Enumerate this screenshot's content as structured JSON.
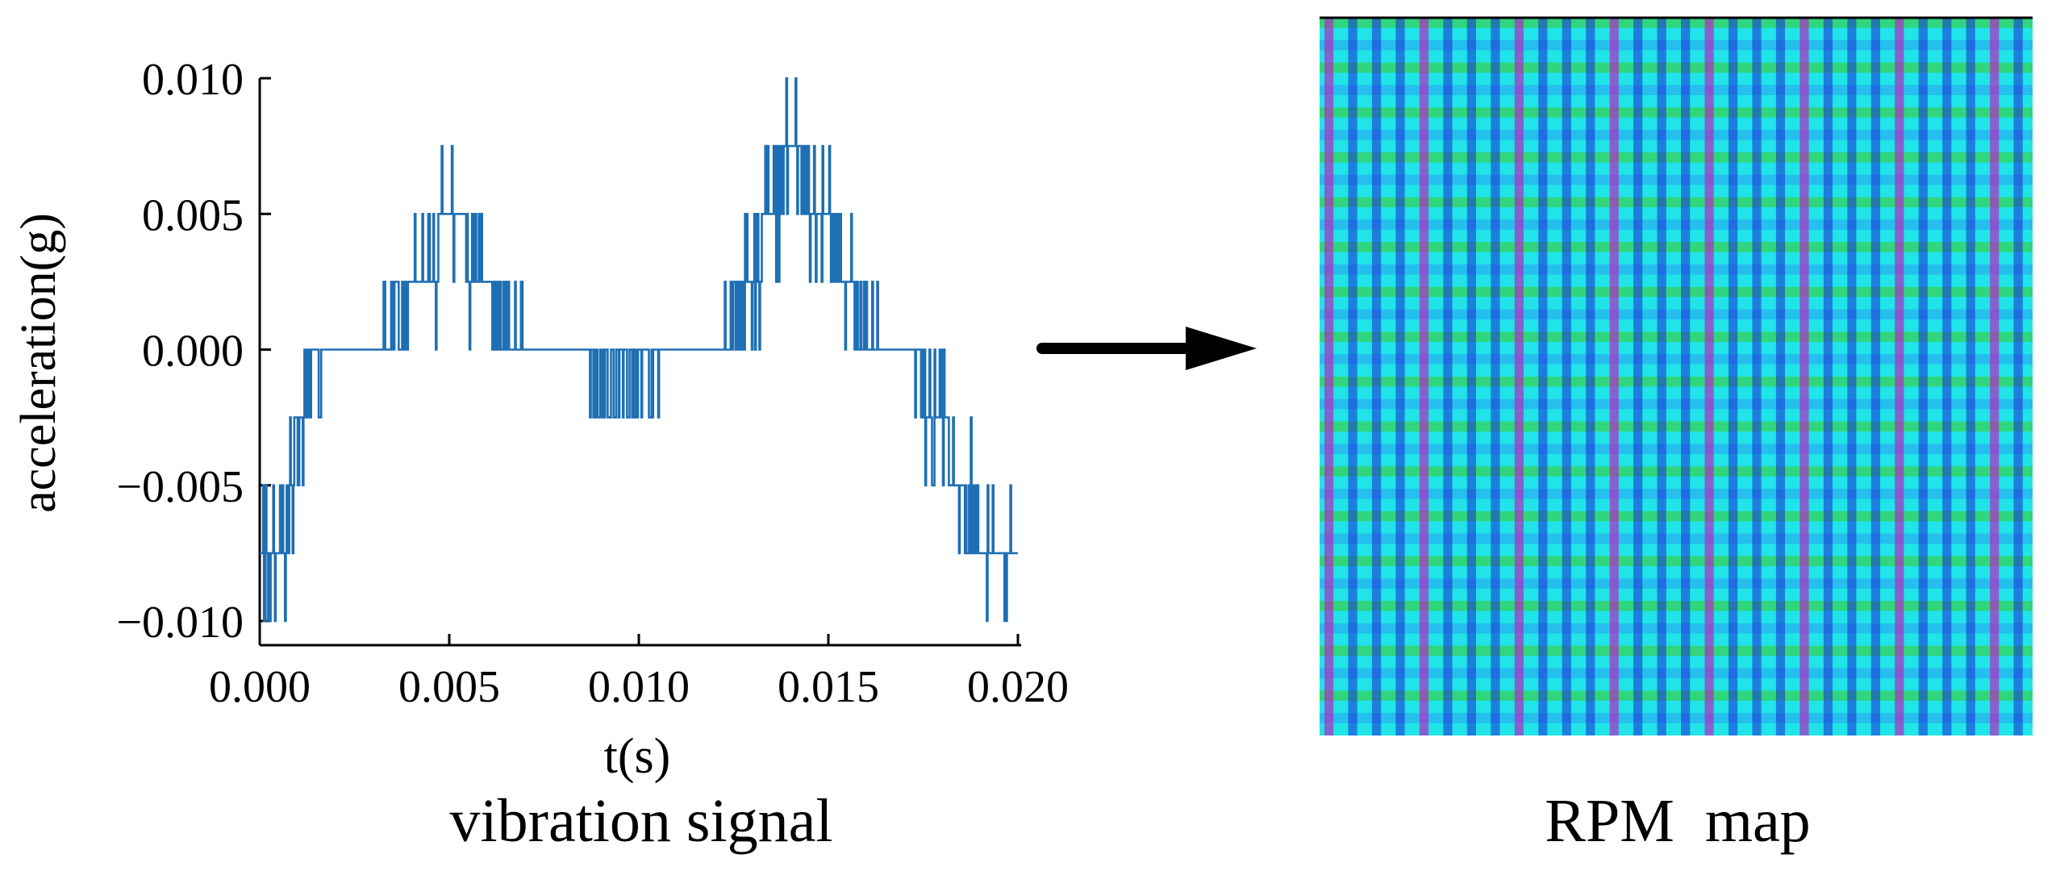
{
  "chart_data": [
    {
      "type": "line",
      "title": "",
      "caption": "vibration signal",
      "xlabel": "t(s)",
      "ylabel": "acceleration(g)",
      "xlim": [
        0.0,
        0.02
      ],
      "ylim": [
        -0.01,
        0.01
      ],
      "x_ticks": [
        0.0,
        0.005,
        0.01,
        0.015,
        0.02
      ],
      "y_ticks": [
        -0.01,
        -0.005,
        0.0,
        0.005,
        0.01
      ],
      "x_tick_labels": [
        "0.000",
        "0.005",
        "0.010",
        "0.015",
        "0.020"
      ],
      "y_tick_labels": [
        "−0.010",
        "−0.005",
        "0.000",
        "0.005",
        "0.010"
      ],
      "grid": false,
      "legend": "none",
      "line_color": "#1f6fb4",
      "series": [
        {
          "name": "",
          "x": [
            0.0,
            0.00025,
            0.0005,
            0.00075,
            0.001,
            0.00125,
            0.0015,
            0.00175,
            0.002,
            0.003,
            0.004,
            0.0045,
            0.005,
            0.0055,
            0.006,
            0.007,
            0.008,
            0.009,
            0.01,
            0.011,
            0.012,
            0.0125,
            0.013,
            0.0135,
            0.014,
            0.0145,
            0.015,
            0.0155,
            0.016,
            0.017,
            0.0175,
            0.018,
            0.0185,
            0.019,
            0.0195,
            0.02
          ],
          "y": [
            -0.0095,
            -0.008,
            -0.0095,
            -0.0065,
            -0.004,
            -0.0015,
            -0.002,
            -0.0005,
            0.0,
            0.001,
            0.0025,
            0.004,
            0.006,
            0.0045,
            0.0025,
            0.0008,
            0.0,
            -0.0015,
            -0.002,
            0.0,
            0.0005,
            0.002,
            0.0035,
            0.006,
            0.0085,
            0.007,
            0.005,
            0.003,
            0.0015,
            0.0,
            -0.002,
            -0.0045,
            -0.006,
            -0.0075,
            -0.0085,
            -0.008
          ]
        }
      ]
    },
    {
      "type": "heatmap",
      "title": "",
      "caption": "RPM  map",
      "colors": [
        "#2aa0f0",
        "#20e4e8",
        "#33d36a",
        "#1a2bd6",
        "#b12bc2"
      ]
    }
  ],
  "arrow": {
    "icon": "arrow-right-icon"
  }
}
